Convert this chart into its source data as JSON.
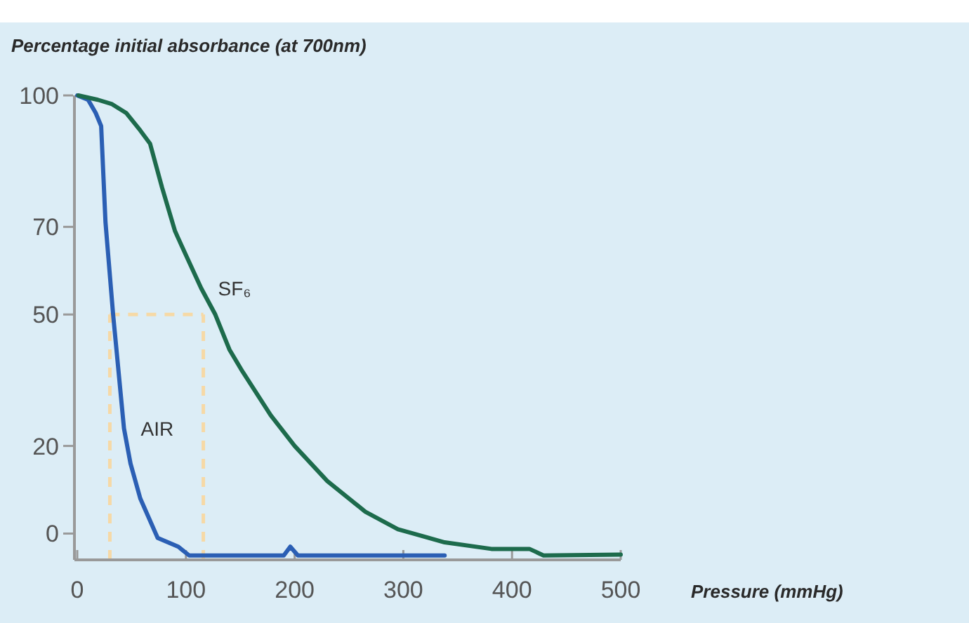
{
  "chart_data": {
    "type": "line",
    "ylabel": "Percentage initial absorbance (at 700nm)",
    "xlabel": "Pressure (mmHg)",
    "xlim": [
      0,
      500
    ],
    "xticks": [
      0,
      100,
      200,
      300,
      400,
      500
    ],
    "ylim": [
      -6,
      100
    ],
    "yticks": [
      0,
      20,
      50,
      70,
      100
    ],
    "grid": false,
    "legend": false,
    "marker": "none",
    "line_style": "solid",
    "ref_lines": [
      {
        "axis": "x",
        "value": 30,
        "color": "#f6d9a6",
        "line_style": "dashed"
      },
      {
        "axis": "x",
        "value": 116,
        "color": "#f6d9a6",
        "line_style": "dashed"
      },
      {
        "axis": "y",
        "value": 50,
        "color": "#f6d9a6",
        "line_style": "dashed"
      }
    ],
    "series": [
      {
        "name": "AIR",
        "color": "#2b5fb4",
        "x": [
          0,
          10,
          17,
          22,
          26,
          33,
          43,
          49,
          58,
          74,
          93,
          103,
          190,
          196,
          203,
          338
        ],
        "values": [
          100,
          99,
          96,
          93,
          71,
          50,
          24,
          16,
          8,
          -1,
          -3,
          -5,
          -5,
          -3,
          -5,
          -5
        ]
      },
      {
        "name": "SF₆",
        "color": "#1d6b4c",
        "x": [
          1,
          19,
          32,
          45,
          58,
          67,
          78,
          90,
          101,
          114,
          127,
          140,
          152,
          178,
          200,
          230,
          265,
          295,
          338,
          381,
          416,
          429,
          500
        ],
        "values": [
          100,
          99,
          98,
          96,
          92,
          89,
          79,
          69,
          63,
          56,
          50,
          42,
          37,
          27,
          20,
          12,
          5,
          1,
          -2,
          -3.5,
          -3.5,
          -5,
          -4.8
        ]
      }
    ]
  }
}
